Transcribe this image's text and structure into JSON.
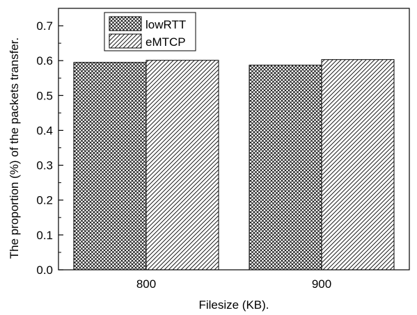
{
  "chart_data": {
    "type": "bar",
    "categories": [
      "800",
      "900"
    ],
    "series": [
      {
        "name": "lowRTT",
        "values": [
          0.595,
          0.587
        ],
        "pattern": "crosshatch"
      },
      {
        "name": "eMTCP",
        "values": [
          0.601,
          0.603
        ],
        "pattern": "diagonal"
      }
    ],
    "xlabel": "Filesize (KB).",
    "ylabel": "The proportion (%) of the packets transfer.",
    "ylim": [
      0,
      0.75
    ],
    "yticks": [
      "0.0",
      "0.1",
      "0.2",
      "0.3",
      "0.4",
      "0.5",
      "0.6",
      "0.7"
    ],
    "grid": false,
    "legend_position": "top-left",
    "colors": {
      "bar_fill": "#ffffff",
      "hatch": "#000000",
      "axis": "#000000"
    }
  }
}
